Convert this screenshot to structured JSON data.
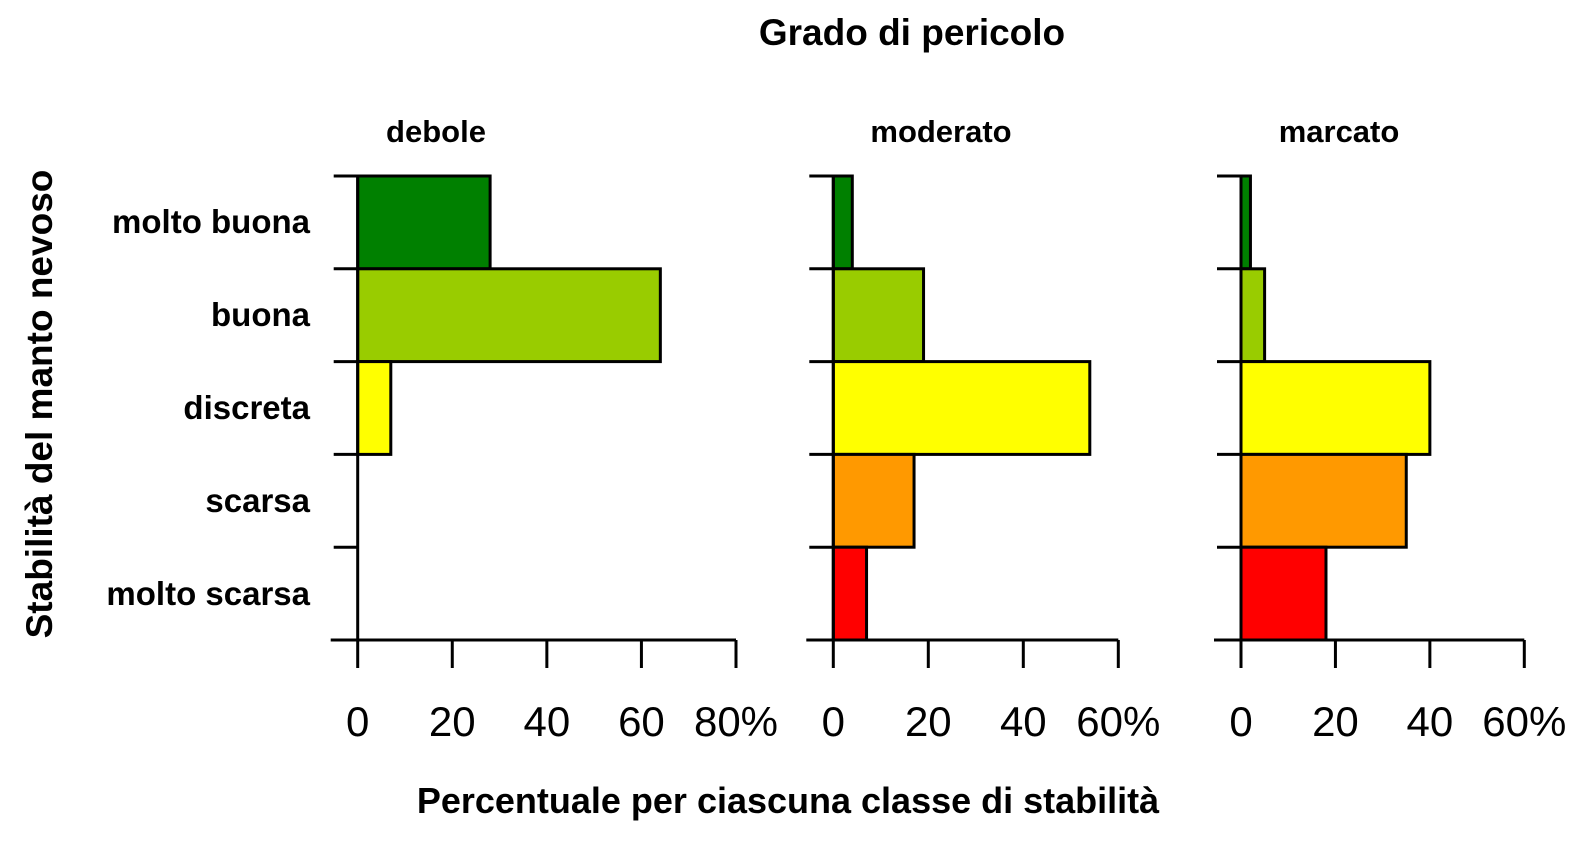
{
  "chart_data": {
    "type": "bar",
    "orientation": "horizontal",
    "title": "Grado di pericolo",
    "ylabel": "Stabilità del manto nevoso",
    "xlabel": "Percentuale per ciascuna classe di stabilità",
    "categories": [
      "molto buona",
      "buona",
      "discreta",
      "scarsa",
      "molto scarsa"
    ],
    "bar_colors": [
      "#008000",
      "#99CC00",
      "#FFFF00",
      "#FF9900",
      "#FF0000"
    ],
    "grid": false,
    "legend": false,
    "panels": [
      {
        "label": "debole",
        "values": [
          28,
          64,
          7,
          0,
          0
        ],
        "xlim": [
          0,
          80
        ],
        "xticks": [
          0,
          20,
          40,
          60,
          80
        ],
        "xtick_labels": [
          "0",
          "20",
          "40",
          "60",
          "80%"
        ]
      },
      {
        "label": "moderato",
        "values": [
          4,
          19,
          54,
          17,
          7
        ],
        "xlim": [
          0,
          60
        ],
        "xticks": [
          0,
          20,
          40,
          60
        ],
        "xtick_labels": [
          "0",
          "20",
          "40",
          "60%"
        ]
      },
      {
        "label": "marcato",
        "values": [
          2,
          5,
          40,
          35,
          18
        ],
        "xlim": [
          0,
          60
        ],
        "xticks": [
          0,
          20,
          40,
          60
        ],
        "xtick_labels": [
          "0",
          "20",
          "40",
          "60%"
        ]
      }
    ],
    "axis_color": "#000000",
    "background_color": "#FFFFFF"
  }
}
